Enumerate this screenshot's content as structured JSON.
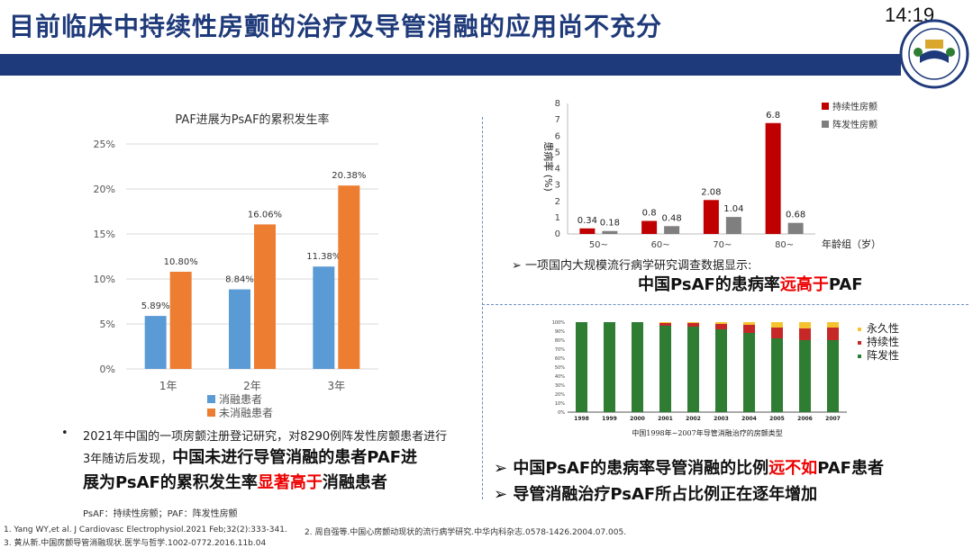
{
  "title": "目前临床中持续性房颤的治疗及导管消融的应用尚不充分",
  "clock": "14:19",
  "chart_left": {
    "type": "bar",
    "title": "PAF进展为PsAF的累积发生率",
    "categories": [
      "1年",
      "2年",
      "3年"
    ],
    "series": [
      {
        "name": "消融患者",
        "color": "#5b9bd5",
        "values": [
          5.89,
          8.84,
          11.38
        ],
        "labels": [
          "5.89%",
          "8.84%",
          "11.38%"
        ]
      },
      {
        "name": "未消融患者",
        "color": "#ed7d31",
        "values": [
          10.8,
          16.06,
          20.38
        ],
        "labels": [
          "10.80%",
          "16.06%",
          "20.38%"
        ]
      }
    ],
    "yticks": [
      "0%",
      "5%",
      "10%",
      "15%",
      "20%",
      "25%"
    ],
    "ylim": [
      0,
      25
    ]
  },
  "chart_right": {
    "type": "bar",
    "categories": [
      "50~",
      "60~",
      "70~",
      "80~"
    ],
    "series": [
      {
        "name": "持续性房颤",
        "color": "#c00000",
        "values": [
          0.34,
          0.8,
          2.08,
          6.8
        ],
        "labels": [
          "0.34",
          "0.8",
          "2.08",
          "6.8"
        ]
      },
      {
        "name": "阵发性房颤",
        "color": "#7f7f7f",
        "values": [
          0.18,
          0.48,
          1.04,
          0.68
        ],
        "labels": [
          "0.18",
          "0.48",
          "1.04",
          "0.68"
        ]
      }
    ],
    "yticks": [
      "0",
      "1",
      "2",
      "3",
      "4",
      "5",
      "6",
      "7",
      "8"
    ],
    "ylabel": "患病率 (%)",
    "xlabel": "年龄组（岁）",
    "ylim": [
      0,
      8
    ]
  },
  "chart_stack": {
    "type": "bar",
    "title": "中国1998年~2007年导管消融治疗的房颤类型",
    "categories": [
      "1998",
      "1999",
      "2000",
      "2001",
      "2002",
      "2003",
      "2004",
      "2005",
      "2006",
      "2007"
    ],
    "series": [
      {
        "name": "阵发性",
        "color": "#2e7d32",
        "values": [
          100,
          100,
          100,
          96,
          95,
          92,
          88,
          82,
          80,
          80
        ]
      },
      {
        "name": "持续性",
        "color": "#c62828",
        "values": [
          0,
          0,
          0,
          3,
          4,
          6,
          9,
          12,
          13,
          14
        ]
      },
      {
        "name": "永久性",
        "color": "#f4c430",
        "values": [
          0,
          0,
          0,
          1,
          1,
          2,
          3,
          6,
          7,
          6
        ]
      }
    ],
    "yticks": [
      "0%",
      "10%",
      "20%",
      "30%",
      "40%",
      "50%",
      "60%",
      "70%",
      "80%",
      "90%",
      "100%"
    ],
    "legend": [
      "永久性",
      "持续性",
      "阵发性"
    ]
  },
  "texts": {
    "survey": "一项国内大规模流行病学研究调查数据显示:",
    "headline_a": "中国PsAF的患病率",
    "headline_b": "远高于",
    "headline_c": "PAF",
    "left_para1": "2021年中国的一项房颤注册登记研究，对8290例阵发性房颤患者进行",
    "left_para2": "3年随访后发现，",
    "left_bold1": "中国未进行导管消融的患者PAF进",
    "left_bold2a": "展为PsAF的累积发生率",
    "left_bold2b": "显著高于",
    "left_bold2c": "消融患者",
    "abbrev": "PsAF：持续性房颤；PAF：阵发性房颤",
    "bullet1a": "中国PsAF的患病率导管消融的比例",
    "bullet1b": "远不如",
    "bullet1c": "PAF患者",
    "bullet2": "导管消融治疗PsAF所占比例正在逐年增加"
  },
  "footnotes": {
    "f1": "1. Yang WY,et al. J Cardiovasc Electrophysiol.2021 Feb;32(2):333-341.",
    "f2": "2. 周自强等.中国心房颤动现状的流行病学研究.中华内科杂志.0578-1426.2004.07.005.",
    "f3": "3. 黄从新.中国房颤导管消融现状.医学与哲学.1002-0772.2016.11b.04"
  }
}
